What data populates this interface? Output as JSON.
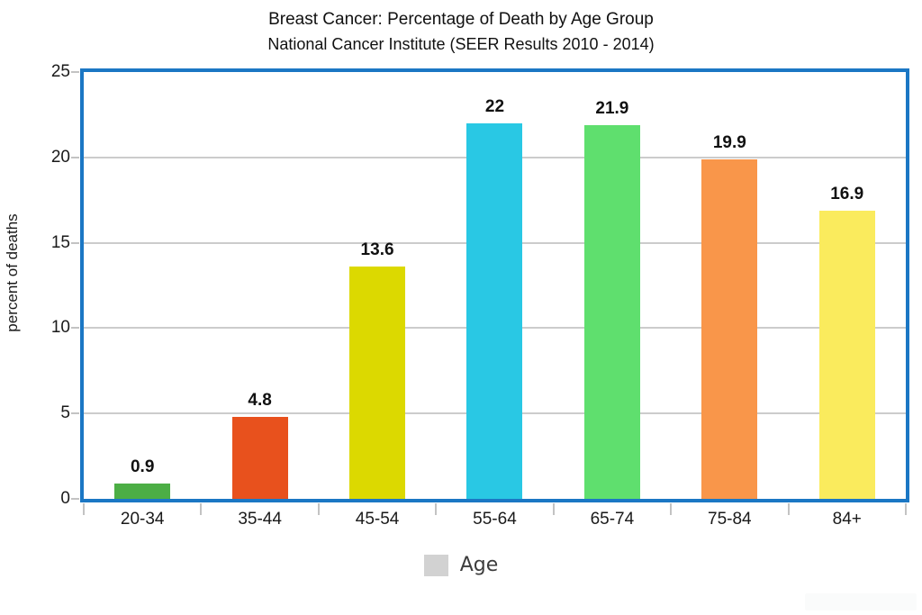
{
  "header": {
    "title": "Breast Cancer: Percentage of Death by Age Group",
    "subtitle": "National Cancer Institute (SEER Results 2010 - 2014)"
  },
  "legend": {
    "label": "Age",
    "swatch_color": "#d2d2d2",
    "position": "bottom"
  },
  "colors": {
    "plot_border": "#1b77c4",
    "gridline": "#cccccc",
    "tick_mark": "#c3c3c3",
    "value_label": "#111111",
    "background": "#ffffff"
  },
  "chart_data": {
    "type": "bar",
    "title": "Breast Cancer: Percentage of Death by Age Group",
    "subtitle": "National Cancer Institute (SEER Results 2010 - 2014)",
    "categories": [
      "20-34",
      "35-44",
      "45-54",
      "55-64",
      "65-74",
      "75-84",
      "84+"
    ],
    "values": [
      0.9,
      4.8,
      13.6,
      22,
      21.9,
      19.9,
      16.9
    ],
    "value_labels": [
      "0.9",
      "4.8",
      "13.6",
      "22",
      "21.9",
      "19.9",
      "16.9"
    ],
    "bar_colors": [
      "#4cae45",
      "#e8511d",
      "#dcd900",
      "#29c8e4",
      "#5fdf6e",
      "#f9964a",
      "#faeb5d"
    ],
    "xlabel": "",
    "ylabel": "percent of deaths",
    "ylim": [
      0,
      25
    ],
    "yticks": [
      0,
      5,
      10,
      15,
      20,
      25
    ],
    "grid": true,
    "legend_entries": [
      "Age"
    ],
    "legend_position": "bottom"
  }
}
